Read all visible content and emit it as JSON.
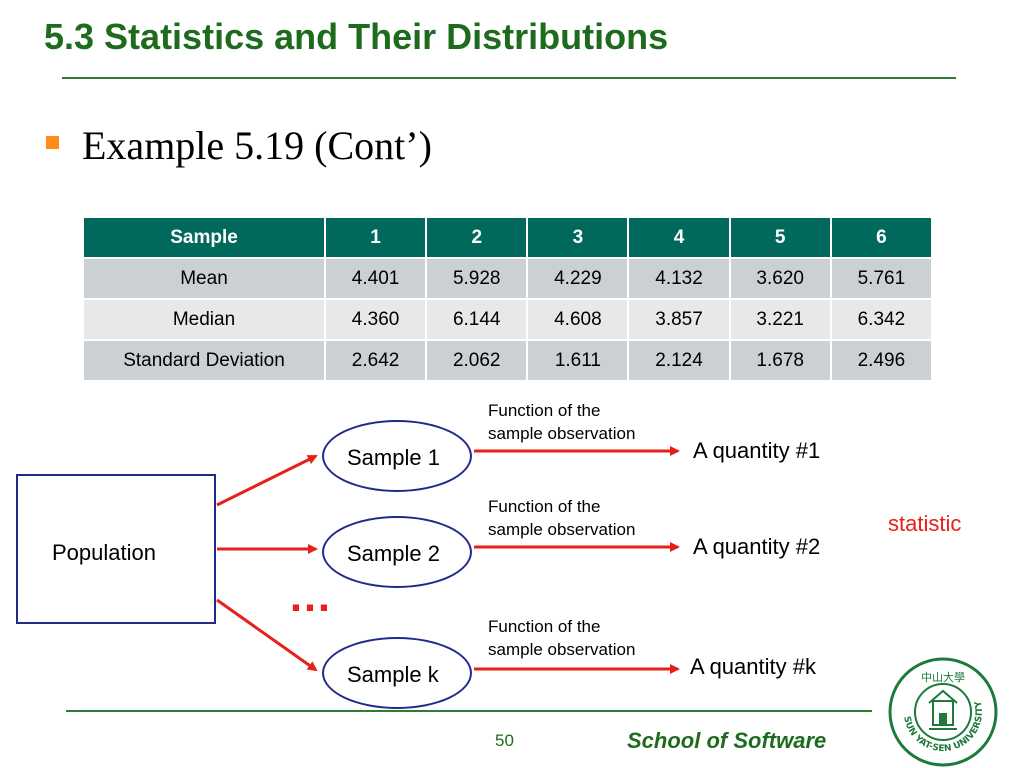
{
  "slide": {
    "title": "5.3 Statistics and Their Distributions",
    "bullet": "Example 5.19 (Cont’)"
  },
  "table": {
    "header": [
      "Sample",
      "1",
      "2",
      "3",
      "4",
      "5",
      "6"
    ],
    "rows": [
      [
        "Mean",
        "4.401",
        "5.928",
        "4.229",
        "4.132",
        "3.620",
        "5.761"
      ],
      [
        "Median",
        "4.360",
        "6.144",
        "4.608",
        "3.857",
        "3.221",
        "6.342"
      ],
      [
        "Standard Deviation",
        "2.642",
        "2.062",
        "1.611",
        "2.124",
        "1.678",
        "2.496"
      ]
    ]
  },
  "diagram": {
    "population": "Population",
    "samples": [
      "Sample 1",
      "Sample 2",
      "Sample k"
    ],
    "function_line1": "Function of the",
    "function_line2": "sample observation",
    "quantities": [
      "A quantity #1",
      "A quantity #2",
      "A quantity #k"
    ],
    "statistic_label": "statistic",
    "ellipsis": "…",
    "accent_color": "#e8201a",
    "shape_border_color": "#1f2a8a"
  },
  "footer": {
    "page_number": "50",
    "school": "School of Software"
  },
  "logo": {
    "icon": "university-seal-icon",
    "seal_text": "SUN YAT-SEN UNIVERSITY",
    "seal_chars": "中山大學"
  }
}
